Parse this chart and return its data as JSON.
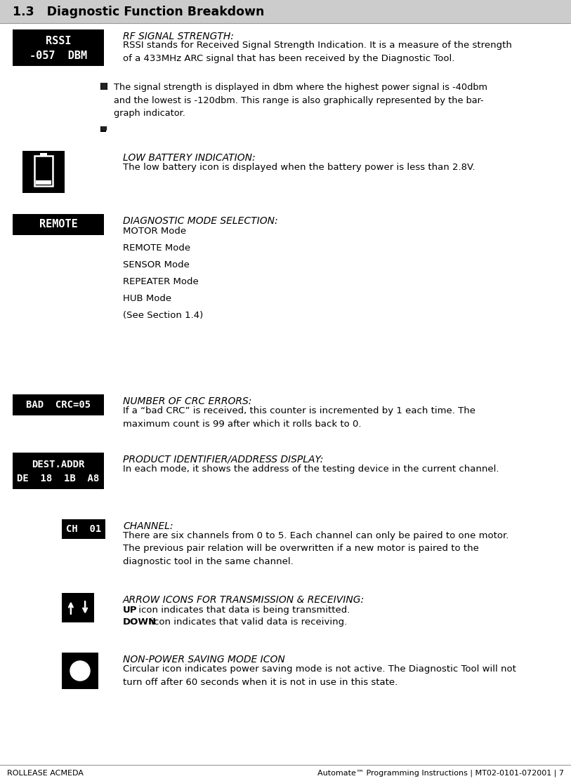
{
  "title": "1.3   Diagnostic Function Breakdown",
  "title_bg": "#cccccc",
  "footer_left": "ROLLEASE ACMEDA",
  "footer_right": "Automate™ Programming Instructions | MT02-0101-072001 | 7",
  "sections": [
    {
      "icon_type": "rssi",
      "icon_text_line1": "RSSI",
      "icon_text_line2": "-057  DBM",
      "heading": "RF SIGNAL STRENGTH:",
      "body": "RSSI stands for Received Signal Strength Indication. It is a measure of the strength\nof a 433MHz ARC signal that has been received by the Diagnostic Tool.",
      "sub_note": "The signal strength is displayed in dbm where the highest power signal is -40dbm\nand the lowest is -120dbm. This range is also graphically represented by the bar-\ngraph indicator."
    },
    {
      "icon_type": "battery",
      "heading": "LOW BATTERY INDICATION:",
      "body": "The low battery icon is displayed when the battery power is less than 2.8V."
    },
    {
      "icon_type": "remote",
      "icon_text_line1": "REMOTE",
      "heading": "DIAGNOSTIC MODE SELECTION:",
      "modes": [
        "MOTOR Mode",
        "REMOTE Mode",
        "SENSOR Mode",
        "REPEATER Mode",
        "HUB Mode",
        "(See Section 1.4)"
      ]
    },
    {
      "icon_type": "crc",
      "icon_text_line1": "BAD  CRC=05",
      "heading": "NUMBER OF CRC ERRORS:",
      "body": "If a “bad CRC” is received, this counter is incremented by 1 each time. The\nmaximum count is 99 after which it rolls back to 0."
    },
    {
      "icon_type": "dest",
      "icon_text_line1": "DEST.ADDR",
      "icon_text_line2": "DE  18  1B  A8",
      "heading": "PRODUCT IDENTIFIER/ADDRESS DISPLAY:",
      "body": "In each mode, it shows the address of the testing device in the current channel."
    },
    {
      "icon_type": "channel",
      "icon_text_line1": "CH  01",
      "heading": "CHANNEL:",
      "body": "There are six channels from 0 to 5. Each channel can only be paired to one motor.\nThe previous pair relation will be overwritten if a new motor is paired to the\ndiagnostic tool in the same channel."
    },
    {
      "icon_type": "arrow",
      "heading": "ARROW ICONS FOR TRANSMISSION & RECEIVING:",
      "body_bold1": "UP",
      "body_rest1": " icon indicates that data is being transmitted.",
      "body_bold2": "DOWN",
      "body_rest2": " icon indicates that valid data is receiving."
    },
    {
      "icon_type": "power",
      "heading": "NON-POWER SAVING MODE ICON",
      "body": "Circular icon indicates power saving mode is not active. The Diagnostic Tool will not\nturn off after 60 seconds when it is not in use in this state."
    }
  ],
  "bg_color": "#ffffff",
  "icon_bg": "#000000",
  "icon_fg": "#ffffff"
}
